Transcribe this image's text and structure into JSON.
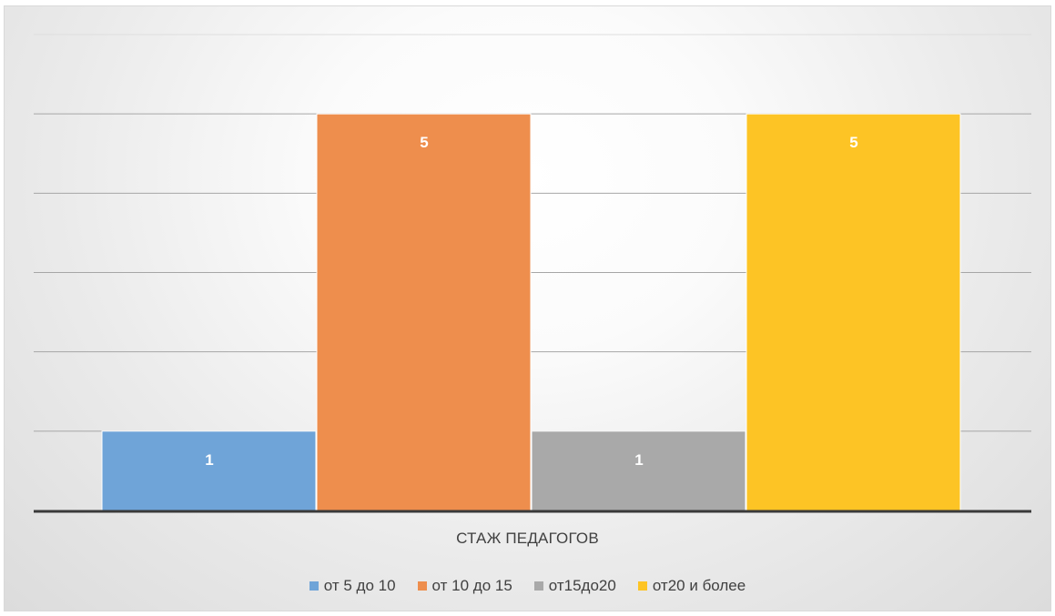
{
  "chart_data": {
    "type": "bar",
    "categories": [
      "СТАЖ ПЕДАГОГОВ"
    ],
    "series": [
      {
        "name": "от 5 до 10",
        "values": [
          1
        ],
        "color": "#6FA4D8"
      },
      {
        "name": "от 10 до 15",
        "values": [
          5
        ],
        "color": "#EE8E4D"
      },
      {
        "name": "от15до20",
        "values": [
          1
        ],
        "color": "#A9A9A9"
      },
      {
        "name": "от20 и более",
        "values": [
          5
        ],
        "color": "#FDC425"
      }
    ],
    "data_labels": [
      "1",
      "5",
      "1",
      "5"
    ],
    "ylim": [
      0,
      6
    ],
    "grid": true,
    "legend_position": "bottom",
    "title": "",
    "xlabel": "",
    "ylabel": ""
  }
}
